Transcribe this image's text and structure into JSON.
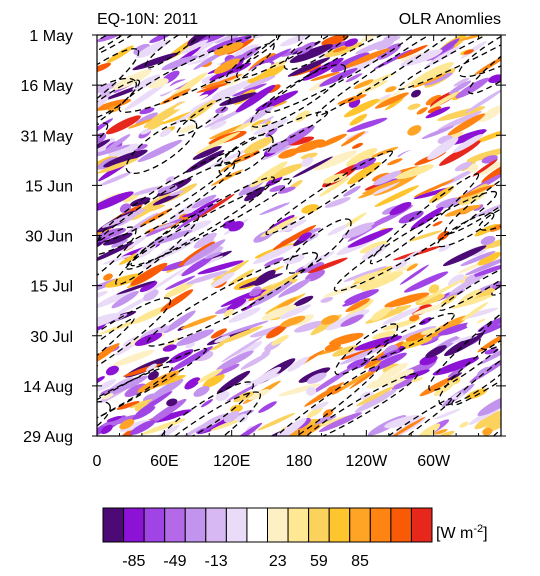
{
  "chart_data": {
    "type": "heatmap",
    "title_left": "EQ-10N: 2011",
    "title_right": "OLR Anomlies",
    "x_ticks": [
      "0",
      "60E",
      "120E",
      "180",
      "120W",
      "60W"
    ],
    "x_tick_lon": [
      0,
      60,
      120,
      180,
      240,
      300
    ],
    "x_range_lon": [
      0,
      360
    ],
    "y_ticks": [
      "1 May",
      "16 May",
      "31 May",
      "15 Jun",
      "30 Jun",
      "15 Jul",
      "30 Jul",
      "14 Aug",
      "29 Aug"
    ],
    "y_tick_days": [
      0,
      15,
      30,
      45,
      60,
      75,
      90,
      105,
      120
    ],
    "y_range_days": [
      0,
      120
    ],
    "colorbar": {
      "unit_label": "[W m",
      "unit_sup": "-2",
      "unit_close": "]",
      "labels": [
        "-85",
        "-49",
        "-13",
        "23",
        "59",
        "85"
      ],
      "colors": [
        "#4b0a75",
        "#8c12d6",
        "#a044e6",
        "#b46ae8",
        "#c394ee",
        "#d8b8f2",
        "#eadbf8",
        "#ffffff",
        "#fdf0c4",
        "#fee893",
        "#fbd25c",
        "#ffc52f",
        "#ffa424",
        "#ff8412",
        "#f85a05",
        "#e7271c"
      ]
    },
    "contour_style": "dashed"
  }
}
